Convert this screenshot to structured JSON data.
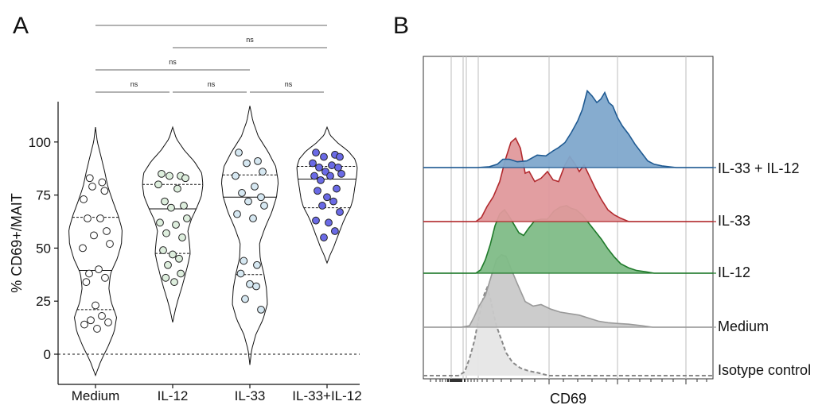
{
  "chart_data": [
    {
      "panel": "A",
      "type": "violin",
      "ylabel": "% CD69+/MAIT",
      "ylim": [
        -10,
        118
      ],
      "yticks": [
        "0",
        "25",
        "50",
        "75",
        "100"
      ],
      "categories": [
        "Medium",
        "IL-12",
        "IL-33",
        "IL-33+IL-12"
      ],
      "colors": [
        "#ffffff",
        "#ddeedd",
        "#d6e8f2",
        "#6a6ae6"
      ],
      "groups": [
        {
          "category": "Medium",
          "median": 39.5,
          "q1": 21,
          "q3": 64.5,
          "min": -10,
          "max": 107,
          "points": [
            83,
            81,
            79,
            77,
            73,
            64,
            64,
            58,
            56,
            52,
            50,
            40,
            38,
            36,
            34,
            23,
            18,
            16,
            15,
            14,
            12
          ]
        },
        {
          "category": "IL-12",
          "median": 68.5,
          "q1": 47.5,
          "q3": 80,
          "min": 15,
          "max": 107,
          "points": [
            85,
            84,
            84,
            83,
            80,
            78,
            72,
            70,
            69,
            64,
            62,
            61,
            57,
            55,
            49,
            47,
            45,
            42,
            38,
            36,
            34
          ]
        },
        {
          "category": "IL-33",
          "median": 74,
          "q1": 37.5,
          "q3": 84.5,
          "min": -5,
          "max": 117,
          "points": [
            95,
            91,
            90,
            86,
            84,
            79,
            76,
            74,
            72,
            70,
            66,
            64,
            44,
            42,
            38,
            33,
            32,
            26,
            21
          ]
        },
        {
          "category": "IL-33+IL-12",
          "median": 82.5,
          "q1": 69,
          "q3": 88.5,
          "min": 43,
          "max": 107,
          "points": [
            95,
            94,
            93,
            93,
            90,
            89,
            88,
            88,
            86,
            85,
            84,
            84,
            82,
            78,
            77,
            74,
            72,
            70,
            67,
            63,
            62,
            58,
            55
          ]
        }
      ],
      "comparisons": [
        {
          "from": "Medium",
          "to": "IL-12",
          "label": "ns"
        },
        {
          "from": "IL-12",
          "to": "IL-33",
          "label": "ns"
        },
        {
          "from": "IL-33",
          "to": "IL-33+IL-12",
          "label": "ns"
        },
        {
          "from": "Medium",
          "to": "IL-33",
          "label": "ns"
        },
        {
          "from": "IL-12",
          "to": "IL-33+IL-12",
          "label": "ns"
        },
        {
          "from": "Medium",
          "to": "IL-33+IL-12",
          "label": ""
        }
      ]
    },
    {
      "panel": "B",
      "type": "histogram-overlay",
      "xlabel": "CD69",
      "series": [
        {
          "name": "IL-33 + IL-12",
          "fill": "#7fa8cc",
          "stroke": "#1f5a92"
        },
        {
          "name": "IL-33",
          "fill": "#e0999c",
          "stroke": "#b22a2e"
        },
        {
          "name": "IL-12",
          "fill": "#7fbc87",
          "stroke": "#1f7a2a"
        },
        {
          "name": "Medium",
          "fill": "#c9c9c9",
          "stroke": "#999999"
        },
        {
          "name": "Isotype control",
          "fill": "#e6e6e6",
          "stroke": "#888888",
          "dashed": true
        }
      ]
    }
  ]
}
